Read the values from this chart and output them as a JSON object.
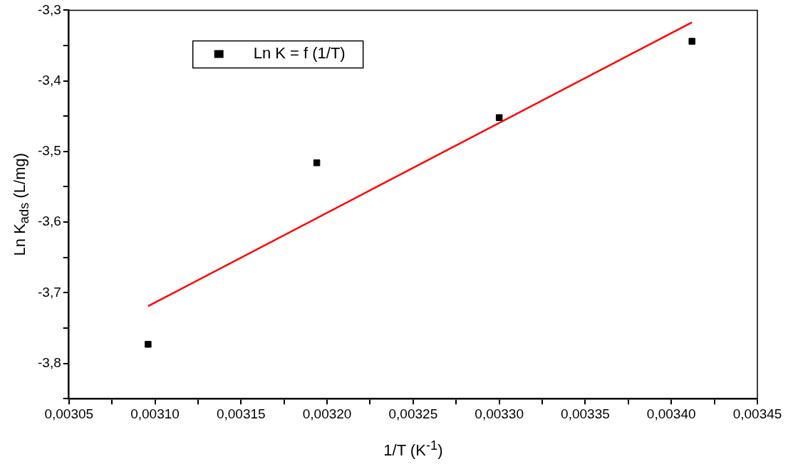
{
  "chart_data": {
    "type": "scatter",
    "xlabel": "1/T (K$^{-1}$)",
    "ylabel": "Ln K$_{ads}$ (L/mg)",
    "xlim": [
      0.00305,
      0.00345
    ],
    "ylim": [
      -3.85,
      -3.3
    ],
    "xticks": [
      {
        "value": 0.00305,
        "label": "0,00305"
      },
      {
        "value": 0.003075,
        "label": null
      },
      {
        "value": 0.0031,
        "label": "0,00310"
      },
      {
        "value": 0.003125,
        "label": null
      },
      {
        "value": 0.00315,
        "label": "0,00315"
      },
      {
        "value": 0.003175,
        "label": null
      },
      {
        "value": 0.0032,
        "label": "0,00320"
      },
      {
        "value": 0.003225,
        "label": null
      },
      {
        "value": 0.00325,
        "label": "0,00325"
      },
      {
        "value": 0.003275,
        "label": null
      },
      {
        "value": 0.0033,
        "label": "0,00330"
      },
      {
        "value": 0.003325,
        "label": null
      },
      {
        "value": 0.00335,
        "label": "0,00335"
      },
      {
        "value": 0.003375,
        "label": null
      },
      {
        "value": 0.0034,
        "label": "0,00340"
      },
      {
        "value": 0.003425,
        "label": null
      },
      {
        "value": 0.00345,
        "label": "0,00345"
      }
    ],
    "yticks": [
      {
        "value": -3.85,
        "label": null
      },
      {
        "value": -3.8,
        "label": "-3,8"
      },
      {
        "value": -3.75,
        "label": null
      },
      {
        "value": -3.7,
        "label": "-3,7"
      },
      {
        "value": -3.65,
        "label": null
      },
      {
        "value": -3.6,
        "label": "-3,6"
      },
      {
        "value": -3.55,
        "label": null
      },
      {
        "value": -3.5,
        "label": "-3,5"
      },
      {
        "value": -3.45,
        "label": null
      },
      {
        "value": -3.4,
        "label": "-3,4"
      },
      {
        "value": -3.35,
        "label": null
      },
      {
        "value": -3.3,
        "label": "-3,3"
      }
    ],
    "grid": false,
    "legend": "top left",
    "series": [
      {
        "name": "Ln K = f (1/T)",
        "marker": "square",
        "color": "#000000",
        "x": [
          0.003096,
          0.003194,
          0.0033,
          0.003412
        ],
        "values": [
          -3.773,
          -3.516,
          -3.452,
          -3.344
        ]
      },
      {
        "type": "line",
        "marker": "none",
        "color": "#ff0000",
        "x": [
          0.003096,
          0.003412
        ],
        "values": [
          -3.719,
          -3.317
        ]
      }
    ]
  }
}
